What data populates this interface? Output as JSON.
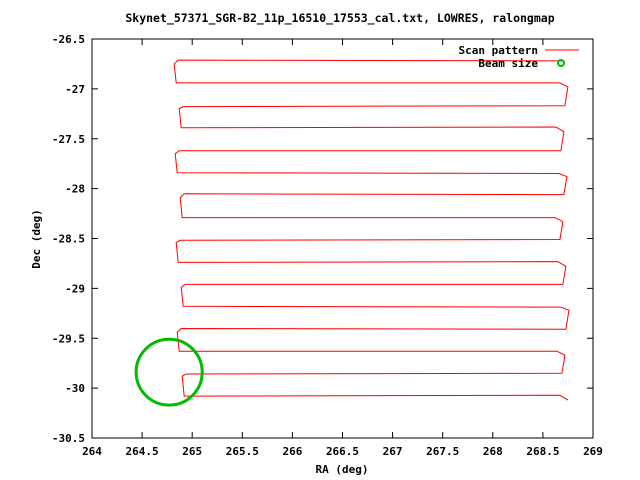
{
  "chart_data": {
    "type": "line",
    "title": "Skynet_57371_SGR-B2_11p_16510_17553_cal.txt, LOWRES, ralongmap",
    "xlabel": "RA (deg)",
    "ylabel": "Dec (deg)",
    "xlim": [
      264,
      269
    ],
    "ylim": [
      -30.5,
      -26.5
    ],
    "xticks": [
      "264",
      "264.5",
      "265",
      "265.5",
      "266",
      "266.5",
      "267",
      "267.5",
      "268",
      "268.5",
      "269"
    ],
    "yticks": [
      "-26.5",
      "-27",
      "-27.5",
      "-28",
      "-28.5",
      "-29",
      "-29.5",
      "-30",
      "-30.5"
    ],
    "grid": false,
    "legend_position": "top-right",
    "series": [
      {
        "name": "Scan pattern",
        "color": "#ff0000",
        "style": "raster",
        "ra_min": 264.86,
        "ra_max": 268.72,
        "dec_rows": [
          -26.72,
          -26.94,
          -27.17,
          -27.39,
          -27.62,
          -27.84,
          -28.06,
          -28.29,
          -28.51,
          -28.74,
          -28.96,
          -29.18,
          -29.41,
          -29.63,
          -29.85,
          -30.08
        ]
      },
      {
        "name": "Beam size",
        "color": "#00bb00",
        "style": "circle",
        "center": [
          264.77,
          -29.84
        ],
        "radius_deg": 0.33
      }
    ]
  }
}
